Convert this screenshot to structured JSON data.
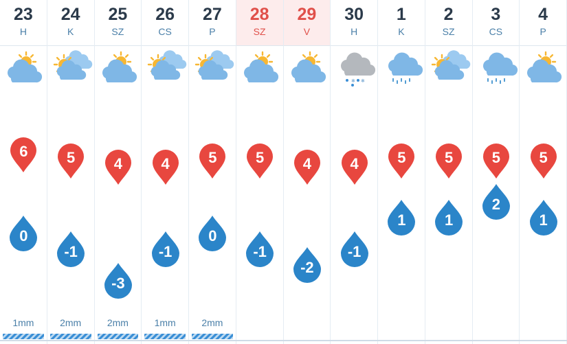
{
  "days": [
    {
      "num": "23",
      "abbr": "H",
      "weekend": false,
      "icon": "partly-cloudy-sun-icon",
      "max": "6",
      "min": "0",
      "rain": "1mm",
      "rain_bar": true
    },
    {
      "num": "24",
      "abbr": "K",
      "weekend": false,
      "icon": "mostly-cloudy-sun-icon",
      "max": "5",
      "min": "-1",
      "rain": "2mm",
      "rain_bar": true
    },
    {
      "num": "25",
      "abbr": "SZ",
      "weekend": false,
      "icon": "partly-cloudy-sun-icon",
      "max": "4",
      "min": "-3",
      "rain": "2mm",
      "rain_bar": true
    },
    {
      "num": "26",
      "abbr": "CS",
      "weekend": false,
      "icon": "mostly-cloudy-sun-icon",
      "max": "4",
      "min": "-1",
      "rain": "1mm",
      "rain_bar": true
    },
    {
      "num": "27",
      "abbr": "P",
      "weekend": false,
      "icon": "mostly-cloudy-sun-icon",
      "max": "5",
      "min": "0",
      "rain": "2mm",
      "rain_bar": true
    },
    {
      "num": "28",
      "abbr": "SZ",
      "weekend": true,
      "icon": "partly-cloudy-sun-icon",
      "max": "5",
      "min": "-1",
      "rain": "",
      "rain_bar": false
    },
    {
      "num": "29",
      "abbr": "V",
      "weekend": true,
      "icon": "partly-cloudy-sun-icon",
      "max": "4",
      "min": "-2",
      "rain": "",
      "rain_bar": false
    },
    {
      "num": "30",
      "abbr": "H",
      "weekend": false,
      "icon": "sleet-cloud-icon",
      "max": "4",
      "min": "-1",
      "rain": "",
      "rain_bar": false
    },
    {
      "num": "1",
      "abbr": "K",
      "weekend": false,
      "icon": "rain-cloud-icon",
      "max": "5",
      "min": "1",
      "rain": "",
      "rain_bar": false
    },
    {
      "num": "2",
      "abbr": "SZ",
      "weekend": false,
      "icon": "mostly-cloudy-sun-icon",
      "max": "5",
      "min": "1",
      "rain": "",
      "rain_bar": false
    },
    {
      "num": "3",
      "abbr": "CS",
      "weekend": false,
      "icon": "rain-cloud-icon",
      "max": "5",
      "min": "2",
      "rain": "",
      "rain_bar": false
    },
    {
      "num": "4",
      "abbr": "P",
      "weekend": false,
      "icon": "partly-cloudy-sun-icon",
      "max": "5",
      "min": "1",
      "rain": "",
      "rain_bar": false
    }
  ],
  "colors": {
    "max_pin": "#e8473f",
    "min_drop": "#2b85c9",
    "weekend_bg": "#fdecec",
    "weekend_text": "#e0504a",
    "cloud": "#7fb7e6",
    "sun": "#f7b733"
  }
}
